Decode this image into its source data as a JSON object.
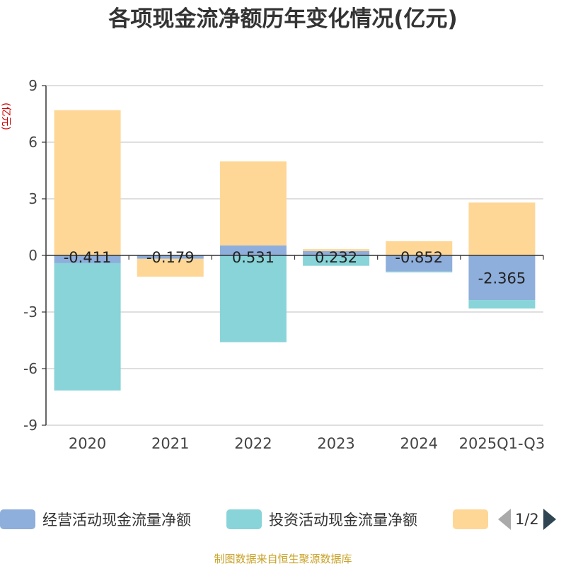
{
  "chart_data": {
    "type": "bar",
    "stacked": true,
    "title": "各项现金流净额历年变化情况(亿元)",
    "ylabel": "(亿元)",
    "categories": [
      "2020",
      "2021",
      "2022",
      "2023",
      "2024",
      "2025Q1-Q3"
    ],
    "ylim": [
      -9,
      9
    ],
    "yticks": [
      9,
      6,
      3,
      0,
      -3,
      -6,
      -9
    ],
    "grid": true,
    "legend_position": "bottom",
    "series": [
      {
        "name": "经营活动现金流量净额",
        "color": "#8eaedb",
        "values": [
          -0.411,
          -0.179,
          0.531,
          0.232,
          -0.852,
          -2.365
        ],
        "labels": [
          "-0.411",
          "-0.179",
          "0.531",
          "0.232",
          "-0.852",
          "-2.365"
        ]
      },
      {
        "name": "投资活动现金流量净额",
        "color": "#88d4d8",
        "values": [
          -6.75,
          0.0,
          -4.6,
          -0.55,
          -0.05,
          -0.45
        ]
      },
      {
        "name": "",
        "color": "#fed797",
        "values": [
          7.7,
          -0.95,
          4.45,
          0.1,
          0.75,
          2.8
        ]
      }
    ]
  },
  "legend": {
    "pager": "1/2"
  },
  "source_note": "制图数据来自恒生聚源数据库"
}
